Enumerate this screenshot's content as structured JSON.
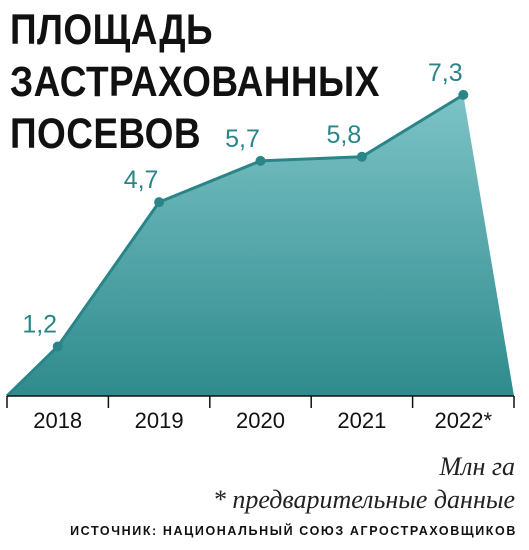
{
  "title_lines": [
    "ПЛОЩАДЬ",
    "ЗАСТРАХОВАННЫХ",
    "ПОСЕВОВ"
  ],
  "unit_label": "Млн га",
  "footnote": "* предварительные данные",
  "source": "ИСТОЧНИК: НАЦИОНАЛЬНЫЙ СОЮЗ АГРОСТРАХОВЩИКОВ",
  "colors": {
    "area_top": "#7cc3c6",
    "area_bottom": "#2f8b8d",
    "line": "#2a8588",
    "label": "#2a8588",
    "axis": "#111111"
  },
  "chart_data": {
    "type": "area",
    "categories": [
      "2018",
      "2019",
      "2020",
      "2021",
      "2022*"
    ],
    "values": [
      1.2,
      4.7,
      5.7,
      5.8,
      7.3
    ],
    "value_labels": [
      "1,2",
      "4,7",
      "5,7",
      "5,8",
      "7,3"
    ],
    "ylim": [
      0,
      8
    ],
    "grid": false,
    "legend": "none"
  }
}
